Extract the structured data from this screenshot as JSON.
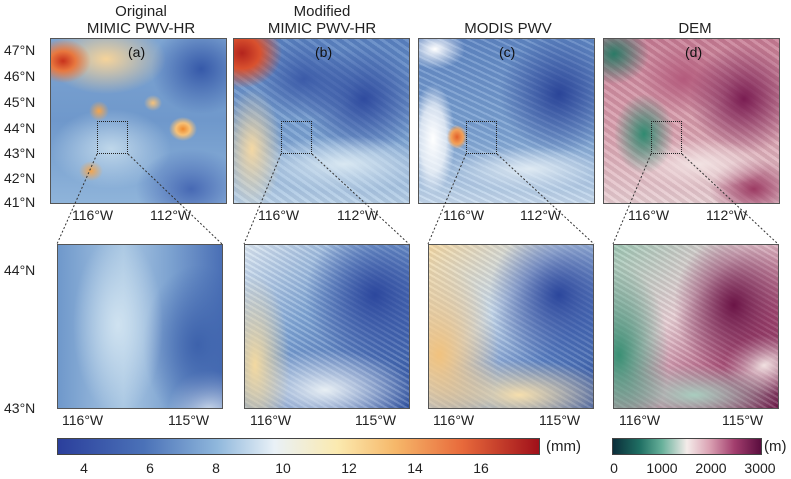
{
  "panels": [
    {
      "title_line1": "Original",
      "title_line2": "MIMIC PWV-HR",
      "label": "(a)"
    },
    {
      "title_line1": "Modified",
      "title_line2": "MIMIC PWV-HR",
      "label": "(b)"
    },
    {
      "title_line1": "",
      "title_line2": "MODIS PWV",
      "label": "(c)"
    },
    {
      "title_line1": "",
      "title_line2": "DEM",
      "label": "(d)"
    }
  ],
  "top_lat_ticks": [
    "47°N",
    "46°N",
    "45°N",
    "44°N",
    "43°N",
    "42°N",
    "41°N"
  ],
  "top_lon_ticks": [
    "116°W",
    "112°W"
  ],
  "bottom_lat_ticks": [
    "44°N",
    "43°N"
  ],
  "bottom_lon_ticks": [
    "116°W",
    "115°W"
  ],
  "colorbar_pwv": {
    "ticks": [
      "4",
      "6",
      "8",
      "10",
      "12",
      "14",
      "16"
    ],
    "unit": "(mm)"
  },
  "colorbar_dem": {
    "ticks": [
      "0",
      "1000",
      "2000",
      "3000"
    ],
    "unit": "(m)"
  },
  "colors": {
    "pwv_low": "#2b3f9c",
    "pwv_mid": "#e9f1f7",
    "pwv_high": "#a0101a",
    "dem_low": "#0b2e3a",
    "dem_mid": "#f4ecea",
    "dem_high": "#5a0d3e"
  }
}
